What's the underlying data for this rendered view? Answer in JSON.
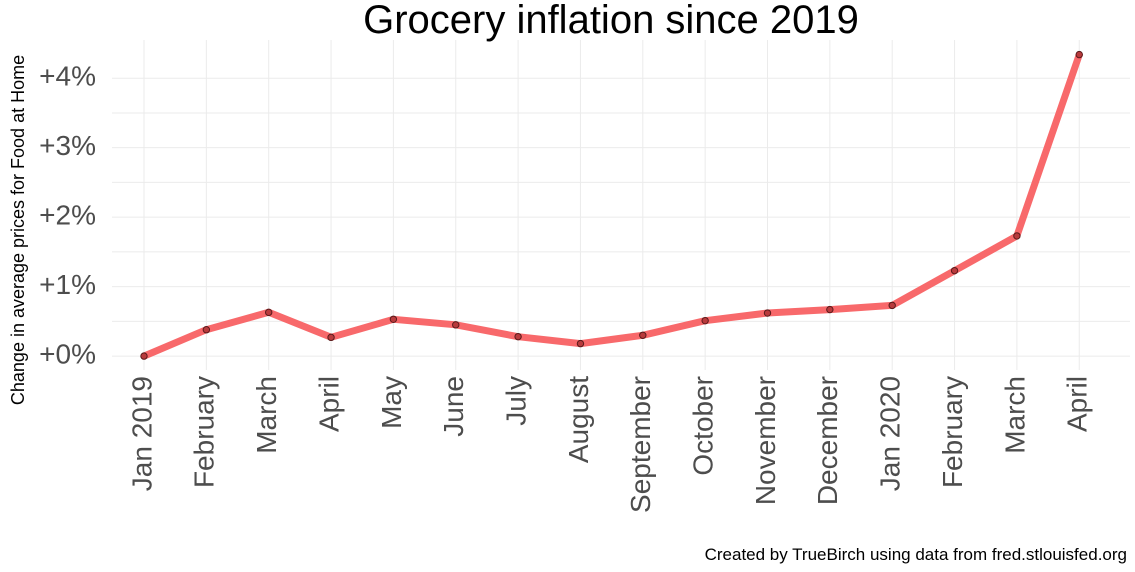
{
  "chart_data": {
    "type": "line",
    "title": "Grocery inflation since 2019",
    "ylabel": "Change in average prices for Food at Home",
    "xlabel": "",
    "caption": "Created by TrueBirch using data from fred.stlouisfed.org",
    "categories": [
      "Jan 2019",
      "February",
      "March",
      "April",
      "May",
      "June",
      "July",
      "August",
      "September",
      "October",
      "November",
      "December",
      "Jan 2020",
      "February",
      "March",
      "April"
    ],
    "values": [
      0.0,
      0.38,
      0.63,
      0.27,
      0.53,
      0.45,
      0.28,
      0.18,
      0.3,
      0.51,
      0.62,
      0.67,
      0.73,
      1.23,
      1.73,
      4.34
    ],
    "y_ticks": [
      0,
      1,
      2,
      3,
      4
    ],
    "y_tick_labels": [
      "+0%",
      "+1%",
      "+2%",
      "+3%",
      "+4%"
    ],
    "ylim": [
      -0.2,
      4.55
    ],
    "grid": true,
    "legend": "none",
    "colors": {
      "line": "#f8696b",
      "point": "#b83a3c",
      "point_outline": "#5a1a1b",
      "grid": "#ebebeb"
    }
  }
}
